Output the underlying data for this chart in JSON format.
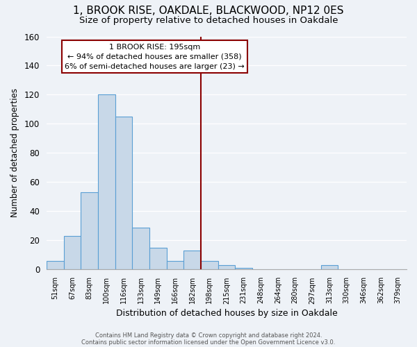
{
  "title": "1, BROOK RISE, OAKDALE, BLACKWOOD, NP12 0ES",
  "subtitle": "Size of property relative to detached houses in Oakdale",
  "xlabel": "Distribution of detached houses by size in Oakdale",
  "ylabel": "Number of detached properties",
  "bin_labels": [
    "51sqm",
    "67sqm",
    "83sqm",
    "100sqm",
    "116sqm",
    "133sqm",
    "149sqm",
    "166sqm",
    "182sqm",
    "198sqm",
    "215sqm",
    "231sqm",
    "248sqm",
    "264sqm",
    "280sqm",
    "297sqm",
    "313sqm",
    "330sqm",
    "346sqm",
    "362sqm",
    "379sqm"
  ],
  "bar_heights": [
    6,
    23,
    53,
    120,
    105,
    29,
    15,
    6,
    13,
    6,
    3,
    1,
    0,
    0,
    0,
    0,
    3,
    0,
    0,
    0,
    0
  ],
  "bar_color": "#c8d8e8",
  "bar_edge_color": "#5a9fd4",
  "vline_x_index": 9,
  "vline_color": "#8b0000",
  "ylim": [
    0,
    160
  ],
  "yticks": [
    0,
    20,
    40,
    60,
    80,
    100,
    120,
    140,
    160
  ],
  "annotation_title": "1 BROOK RISE: 195sqm",
  "annotation_line1": "← 94% of detached houses are smaller (358)",
  "annotation_line2": "6% of semi-detached houses are larger (23) →",
  "footer_line1": "Contains HM Land Registry data © Crown copyright and database right 2024.",
  "footer_line2": "Contains public sector information licensed under the Open Government Licence v3.0.",
  "background_color": "#eef2f7",
  "grid_color": "#ffffff",
  "title_fontsize": 11,
  "subtitle_fontsize": 9.5,
  "bar_fontsize": 8,
  "ylabel_fontsize": 8.5,
  "xlabel_fontsize": 9
}
